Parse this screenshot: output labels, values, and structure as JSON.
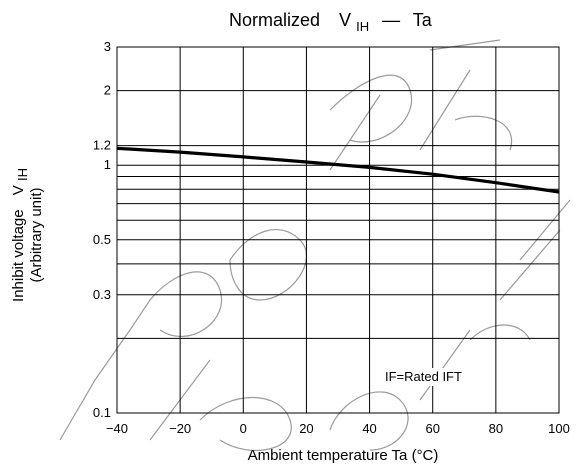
{
  "chart_data": {
    "type": "line",
    "title": "Normalized",
    "title_symbol": "V",
    "title_symbol_sub": "IH",
    "title_dash": "—",
    "title_var": "Ta",
    "xlabel": "Ambient temperature Ta (°C)",
    "ylabel_line1": "Inhibit voltage",
    "ylabel_symbol": "V",
    "ylabel_symbol_sub": "IH",
    "ylabel_line2": "(Arbitrary unit)",
    "annotation": "IF=Rated IFT",
    "watermark": "Not Recommended for New Design",
    "x_scale": "linear",
    "y_scale": "log",
    "xlim": [
      -40,
      100
    ],
    "ylim": [
      0.1,
      3
    ],
    "x_ticks": [
      -40,
      -20,
      0,
      20,
      40,
      60,
      80,
      100
    ],
    "x_tick_labels": [
      "−40",
      "−20",
      "0",
      "20",
      "40",
      "60",
      "80",
      "100"
    ],
    "y_ticks": [
      0.1,
      0.3,
      0.5,
      1,
      1.2,
      2,
      3
    ],
    "y_tick_labels": [
      "0.1",
      "0.3",
      "0.5",
      "1",
      "1.2",
      "2",
      "3"
    ],
    "y_gridlines": [
      0.2,
      0.3,
      0.4,
      0.5,
      0.6,
      0.7,
      0.8,
      0.9,
      1,
      1.2,
      2
    ],
    "grid": true,
    "colors": {
      "line": "#000000",
      "grid": "#000000",
      "watermark": "#9a9a9a"
    },
    "series": [
      {
        "x": [
          -40,
          -20,
          0,
          20,
          40,
          60,
          80,
          100
        ],
        "y": [
          1.17,
          1.13,
          1.08,
          1.03,
          0.98,
          0.92,
          0.85,
          0.78
        ]
      }
    ]
  }
}
